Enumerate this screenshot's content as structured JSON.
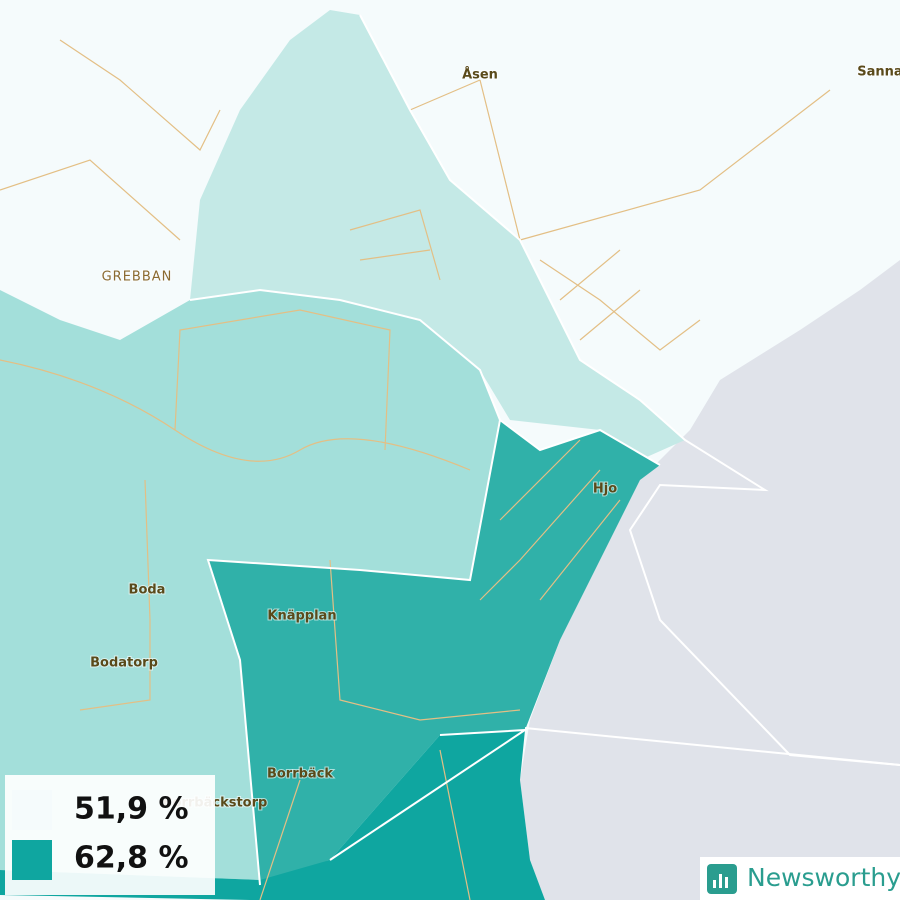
{
  "places": [
    "Åsen",
    "Sanna",
    "GREBBAN",
    "Hjo",
    "Boda",
    "Bodatorp",
    "Knäpplan",
    "Borrbäck",
    "Borrbäckstorp"
  ],
  "legend": [
    {
      "label": "51,9 %",
      "color": "#f5fbfc"
    },
    {
      "label": "62,8 %",
      "color": "#0fa6a0"
    }
  ],
  "brand": "Newsworthy"
}
